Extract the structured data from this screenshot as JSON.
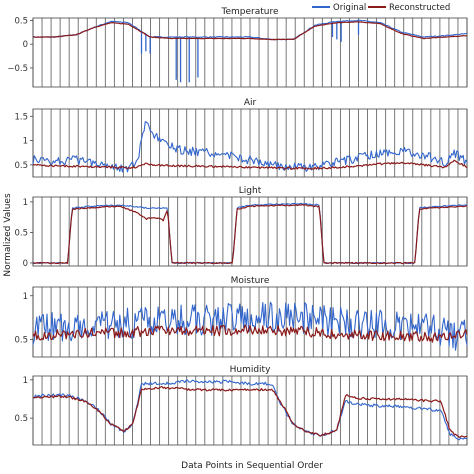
{
  "figure": {
    "xlabel": "Data Points in Sequential Order",
    "ylabel": "Normalized Values"
  },
  "legend": {
    "position": "top-right",
    "entries": [
      {
        "label": "Original",
        "color": "#3366cc"
      },
      {
        "label": "Reconstructed",
        "color": "#8b1a1a"
      }
    ]
  },
  "chart_data": [
    {
      "type": "line",
      "title": "Temperature",
      "ylim": [
        -0.9,
        0.55
      ],
      "yticks": [
        0.5,
        0,
        -0.5
      ],
      "ytick_labels": [
        "0.5",
        "0",
        "−0.5"
      ],
      "grid": "vertical",
      "x": [
        0,
        5,
        10,
        14,
        18,
        22,
        27,
        32,
        36,
        40,
        45,
        50,
        55,
        60,
        65,
        70,
        75,
        80,
        85,
        90,
        95,
        100
      ],
      "series": [
        {
          "name": "Original",
          "values": [
            0.15,
            0.15,
            0.2,
            0.35,
            0.48,
            0.45,
            0.15,
            0.15,
            0.15,
            0.15,
            0.15,
            0.15,
            0.1,
            0.1,
            0.4,
            0.48,
            0.5,
            0.45,
            0.25,
            0.15,
            0.18,
            0.22
          ],
          "dips": [
            {
              "x": 25,
              "y": -0.2
            },
            {
              "x": 26,
              "y": -0.15
            },
            {
              "x": 27,
              "y": -0.2
            },
            {
              "x": 33,
              "y": -0.75
            },
            {
              "x": 34,
              "y": -0.8
            },
            {
              "x": 36,
              "y": -0.8
            },
            {
              "x": 38,
              "y": -0.7
            },
            {
              "x": 69,
              "y": 0.15
            },
            {
              "x": 70,
              "y": 0.1
            },
            {
              "x": 71,
              "y": 0.05
            },
            {
              "x": 75,
              "y": 0.2
            }
          ]
        },
        {
          "name": "Reconstructed",
          "values": [
            0.15,
            0.15,
            0.2,
            0.35,
            0.45,
            0.42,
            0.15,
            0.12,
            0.12,
            0.12,
            0.12,
            0.12,
            0.1,
            0.1,
            0.38,
            0.45,
            0.47,
            0.43,
            0.22,
            0.12,
            0.15,
            0.18
          ]
        }
      ]
    },
    {
      "type": "line",
      "title": "Air",
      "ylim": [
        0.25,
        1.65
      ],
      "yticks": [
        1.5,
        1,
        0.5
      ],
      "ytick_labels": [
        "1.5",
        "1",
        "0.5"
      ],
      "grid": "vertical",
      "x": [
        0,
        5,
        10,
        15,
        20,
        22,
        24,
        26,
        28,
        30,
        34,
        40,
        45,
        50,
        55,
        60,
        65,
        70,
        75,
        80,
        85,
        90,
        95,
        97,
        100
      ],
      "series": [
        {
          "name": "Original",
          "values": [
            0.6,
            0.58,
            0.6,
            0.55,
            0.45,
            0.42,
            0.55,
            1.35,
            1.1,
            0.95,
            0.8,
            0.75,
            0.7,
            0.6,
            0.5,
            0.45,
            0.45,
            0.55,
            0.65,
            0.75,
            0.78,
            0.7,
            0.55,
            0.75,
            0.55
          ]
        },
        {
          "name": "Reconstructed",
          "values": [
            0.5,
            0.48,
            0.47,
            0.46,
            0.45,
            0.44,
            0.45,
            0.52,
            0.5,
            0.49,
            0.48,
            0.47,
            0.46,
            0.45,
            0.44,
            0.43,
            0.43,
            0.45,
            0.48,
            0.52,
            0.54,
            0.5,
            0.45,
            0.6,
            0.45
          ]
        }
      ]
    },
    {
      "type": "line",
      "title": "Light",
      "ylim": [
        -0.05,
        1.08
      ],
      "yticks": [
        1,
        0.5,
        0
      ],
      "ytick_labels": [
        "1",
        "0.5",
        "0"
      ],
      "grid": "vertical",
      "x": [
        0,
        8,
        9,
        12,
        20,
        24,
        26,
        28,
        30,
        31,
        32,
        46,
        47,
        50,
        62,
        66,
        67,
        88,
        89,
        92,
        100
      ],
      "series": [
        {
          "name": "Original",
          "values": [
            0,
            0,
            0.9,
            0.92,
            0.95,
            0.92,
            0.9,
            0.9,
            0.9,
            0.9,
            0,
            0,
            0.9,
            0.95,
            0.97,
            0.95,
            0,
            0,
            0.9,
            0.92,
            0.95
          ]
        },
        {
          "name": "Reconstructed",
          "values": [
            0,
            0,
            0.88,
            0.9,
            0.93,
            0.82,
            0.72,
            0.75,
            0.7,
            0.88,
            0,
            0,
            0.88,
            0.93,
            0.95,
            0.92,
            0,
            0,
            0.88,
            0.9,
            0.93
          ]
        }
      ]
    },
    {
      "type": "line",
      "title": "Moisture",
      "ylim": [
        0.3,
        1.1
      ],
      "yticks": [
        1,
        0.5
      ],
      "ytick_labels": [
        "1",
        "0.5"
      ],
      "grid": "vertical",
      "x": [
        0,
        5,
        10,
        15,
        20,
        25,
        30,
        35,
        40,
        45,
        50,
        55,
        60,
        65,
        70,
        75,
        80,
        85,
        90,
        95,
        97,
        100
      ],
      "series": [
        {
          "name": "Original",
          "values": [
            0.62,
            0.64,
            0.66,
            0.66,
            0.68,
            0.7,
            0.72,
            0.72,
            0.72,
            0.74,
            0.76,
            0.76,
            0.76,
            0.74,
            0.7,
            0.68,
            0.66,
            0.64,
            0.62,
            0.6,
            0.55,
            0.55
          ]
        },
        {
          "name": "Reconstructed",
          "values": [
            0.55,
            0.56,
            0.57,
            0.57,
            0.58,
            0.59,
            0.6,
            0.6,
            0.6,
            0.6,
            0.61,
            0.6,
            0.6,
            0.58,
            0.55,
            0.55,
            0.54,
            0.54,
            0.53,
            0.53,
            0.58,
            0.55
          ]
        }
      ]
    },
    {
      "type": "line",
      "title": "Humidity",
      "ylim": [
        0.15,
        1.05
      ],
      "yticks": [
        1,
        0.5
      ],
      "ytick_labels": [
        "1",
        "0.5"
      ],
      "grid": "vertical",
      "x": [
        0,
        4,
        8,
        12,
        15,
        18,
        21,
        23,
        25,
        30,
        35,
        40,
        45,
        50,
        55,
        57,
        60,
        63,
        66,
        68,
        70,
        72,
        75,
        80,
        85,
        90,
        94,
        96,
        98,
        100
      ],
      "series": [
        {
          "name": "Original",
          "values": [
            0.78,
            0.8,
            0.8,
            0.72,
            0.62,
            0.42,
            0.32,
            0.42,
            0.95,
            0.95,
            0.98,
            0.97,
            0.98,
            0.95,
            0.95,
            0.7,
            0.42,
            0.32,
            0.28,
            0.3,
            0.35,
            0.72,
            0.68,
            0.66,
            0.65,
            0.62,
            0.6,
            0.3,
            0.22,
            0.25
          ]
        },
        {
          "name": "Reconstructed",
          "values": [
            0.77,
            0.78,
            0.78,
            0.72,
            0.6,
            0.42,
            0.33,
            0.42,
            0.88,
            0.9,
            0.88,
            0.87,
            0.87,
            0.87,
            0.88,
            0.72,
            0.42,
            0.32,
            0.28,
            0.3,
            0.35,
            0.8,
            0.76,
            0.75,
            0.75,
            0.73,
            0.72,
            0.35,
            0.25,
            0.27
          ]
        }
      ]
    }
  ]
}
